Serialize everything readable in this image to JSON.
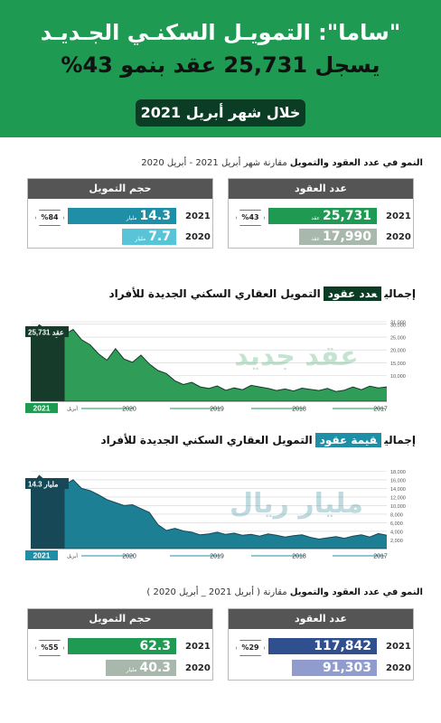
{
  "hero": {
    "line1": "\"ساما\": التمويـل السكنـي الجـديـد",
    "line2": "يسجل 25,731 عقد بنمو 43%",
    "badge": "خلال شهر أبريل 2021"
  },
  "section1": {
    "head_bold": "النمو في عدد العقود والتمويل",
    "head_rest": " مقارنة شهر أبريل 2021 - أبريل 2020",
    "contracts": {
      "title": "عدد العقود",
      "growth": "%43",
      "rows": [
        {
          "year": "2021",
          "value": "25,731",
          "unit": "عقد"
        },
        {
          "year": "2020",
          "value": "17,990",
          "unit": "عقد"
        }
      ]
    },
    "financing": {
      "title": "حجم التمويل",
      "growth": "%84",
      "rows": [
        {
          "year": "2021",
          "value": "14.3",
          "unit": "مليار"
        },
        {
          "year": "2020",
          "value": "7.7",
          "unit": "مليار"
        }
      ]
    }
  },
  "chart1": {
    "title_pre": "إجمالي",
    "title_hl": "عدد عقود",
    "title_post": "التمويل العقاري السكني الجديدة للأفراد",
    "callout_value": "25,731",
    "callout_unit": "عقد",
    "watermark": "عقد جديد",
    "year_tag": "2021",
    "month_label": "أبريل"
  },
  "chart2": {
    "title_pre": "إجمالي",
    "title_hl": "قيمة عقود",
    "title_post": "التمويل العقاري السكني الجديدة للأفراد",
    "callout_value": "14.3",
    "callout_unit": "مليار",
    "watermark": "مليار ريال",
    "year_tag": "2021",
    "month_label": "أبريل"
  },
  "section2": {
    "head_bold": "النمو في عدد العقود والتمويل",
    "head_rest": " مقارنة ( أبريل 2021 _ أبريل 2020 )",
    "contracts": {
      "title": "عدد العقود",
      "growth": "%29",
      "rows": [
        {
          "year": "2021",
          "value": "117,842",
          "unit": ""
        },
        {
          "year": "2020",
          "value": "91,303",
          "unit": ""
        }
      ]
    },
    "financing": {
      "title": "حجم التمويل",
      "growth": "%55",
      "rows": [
        {
          "year": "2021",
          "value": "62.3",
          "unit": ""
        },
        {
          "year": "2020",
          "value": "40.3",
          "unit": "مليار"
        }
      ]
    }
  },
  "colors": {
    "green": "#1e9a52",
    "dark_green": "#0b3d24",
    "teal": "#1f8fa8",
    "navy": "#2f4f8f",
    "light_green": "#8fc99f",
    "grey_green": "#a9b8ac",
    "light_teal": "#59c3d8",
    "grey": "#555555"
  },
  "chart_data": [
    {
      "type": "area",
      "series": [
        {
          "name": "",
          "values": [
            25731,
            29800,
            27500,
            24500,
            26000,
            28000,
            24000,
            22000,
            18500,
            16000,
            20500,
            16500,
            15200,
            18000,
            14500,
            12000,
            10800,
            8000,
            6500,
            7400,
            5600,
            5000,
            6000,
            4300,
            5200,
            4500,
            6200,
            5600,
            5000,
            4200,
            4800,
            4000,
            5100,
            4600,
            4200,
            5000,
            3800,
            4300,
            5600,
            4500,
            5900,
            5200,
            5600
          ]
        }
      ],
      "y_ticks": [
        "31,000",
        "30,000",
        "25,000",
        "20,000",
        "15,000",
        "10,000"
      ],
      "x_ticks": [
        "2020",
        "2019",
        "2018",
        "2017"
      ],
      "ylim": [
        0,
        31000
      ],
      "highlight_last_n": 5,
      "annotation": "25,731 عقد"
    },
    {
      "type": "area",
      "series": [
        {
          "name": "",
          "values": [
            14.3,
            17,
            15.3,
            14.3,
            14.8,
            16,
            14,
            13.5,
            12.5,
            11.4,
            10.7,
            10,
            10.2,
            9.3,
            8.4,
            5.6,
            4.2,
            4.7,
            4.1,
            3.8,
            3.2,
            3.4,
            3.8,
            3.3,
            3.6,
            3.1,
            3.3,
            2.9,
            3.4,
            3.1,
            2.7,
            3.0,
            3.2,
            2.6,
            2.2,
            2.5,
            2.8,
            2.4,
            2.9,
            3.2,
            2.7,
            3.5,
            3.1
          ]
        }
      ],
      "y_ticks": [
        "18,000",
        "16,000",
        "14,000",
        "12,000",
        "10,000",
        "8,000",
        "6,000",
        "4,000",
        "2,000"
      ],
      "x_ticks": [
        "2020",
        "2019",
        "2018",
        "2017"
      ],
      "ylim": [
        0,
        18.5
      ],
      "highlight_last_n": 5,
      "annotation": "14.3 مليار"
    }
  ]
}
